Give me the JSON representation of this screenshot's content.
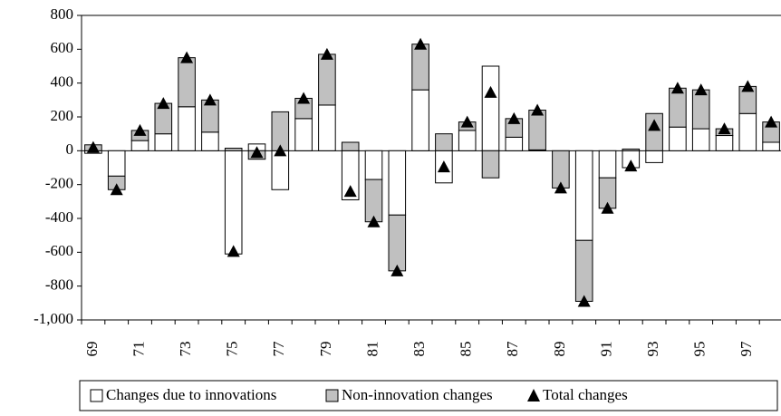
{
  "chart_data": {
    "type": "bar",
    "stacked": true,
    "categories": [
      "69",
      null,
      "71",
      null,
      "73",
      null,
      "75",
      null,
      "77",
      null,
      "79",
      null,
      "81",
      null,
      "83",
      null,
      "85",
      null,
      "87",
      null,
      "89",
      null,
      "91",
      null,
      "93",
      null,
      "95",
      null,
      "97",
      null
    ],
    "series": [
      {
        "name": "Changes due to innovations",
        "color": "#ffffff",
        "type": "bar",
        "values": [
          -15,
          -150,
          60,
          100,
          260,
          110,
          -610,
          40,
          -230,
          190,
          270,
          -290,
          -170,
          -380,
          360,
          -190,
          120,
          500,
          80,
          5,
          0,
          -530,
          -160,
          -100,
          -70,
          140,
          130,
          90,
          220,
          50
        ]
      },
      {
        "name": "Non-innovation changes",
        "color": "#c0c0c0",
        "type": "bar",
        "values": [
          35,
          -80,
          60,
          180,
          290,
          190,
          15,
          -50,
          230,
          120,
          300,
          50,
          -250,
          -330,
          270,
          100,
          50,
          -160,
          110,
          235,
          -220,
          -360,
          -180,
          10,
          220,
          230,
          230,
          40,
          160,
          120
        ]
      },
      {
        "name": "Total changes",
        "color": "#000000",
        "type": "marker",
        "values": [
          20,
          -230,
          120,
          280,
          550,
          300,
          -595,
          -10,
          0,
          310,
          570,
          -240,
          -420,
          -710,
          630,
          -95,
          170,
          345,
          190,
          240,
          -220,
          -890,
          -340,
          -90,
          150,
          370,
          360,
          130,
          380,
          170
        ]
      }
    ],
    "ylim": [
      -1000,
      800
    ],
    "yticks": [
      {
        "value": -1000,
        "label": "-1,000"
      },
      -800,
      -600,
      -400,
      -200,
      0,
      200,
      400,
      600,
      800
    ],
    "grid": false
  }
}
